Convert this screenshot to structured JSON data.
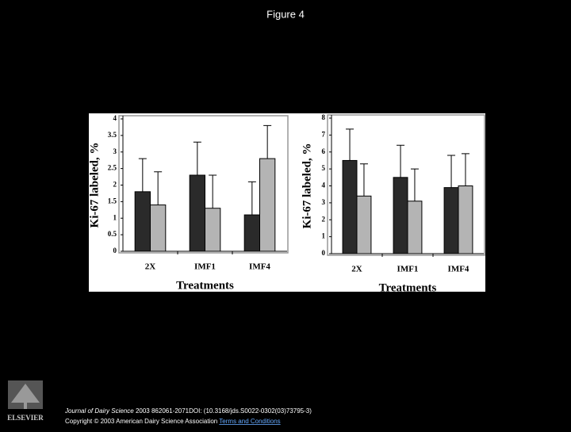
{
  "title": "Figure 4",
  "chart_data": [
    {
      "type": "bar",
      "categories": [
        "2X",
        "IMF1",
        "IMF4"
      ],
      "series": [
        {
          "color": "#2a2a2a",
          "values": [
            1.8,
            2.3,
            1.1
          ],
          "errors": [
            1.0,
            1.0,
            1.0
          ]
        },
        {
          "color": "#b4b4b4",
          "values": [
            1.4,
            1.3,
            2.8
          ],
          "errors": [
            1.0,
            1.0,
            1.0
          ]
        }
      ],
      "ylim": [
        0,
        4
      ],
      "yticks": [
        0,
        0.5,
        1,
        1.5,
        2,
        2.5,
        3,
        3.5,
        4
      ],
      "x_label": "Treatments",
      "y_label": "Ki-67 labeled, %"
    },
    {
      "type": "bar",
      "categories": [
        "2X",
        "IMF1",
        "IMF4"
      ],
      "series": [
        {
          "color": "#2a2a2a",
          "values": [
            5.5,
            4.5,
            3.9
          ],
          "errors": [
            1.85,
            1.9,
            1.9
          ]
        },
        {
          "color": "#b4b4b4",
          "values": [
            3.4,
            3.1,
            4.0
          ],
          "errors": [
            1.9,
            1.9,
            1.9
          ]
        }
      ],
      "ylim": [
        0,
        8
      ],
      "yticks": [
        0,
        1,
        2,
        3,
        4,
        5,
        6,
        7,
        8
      ],
      "x_label": "Treatments",
      "y_label": "Ki-67 labeled, %"
    }
  ],
  "footer": {
    "journal": "Journal of Dairy Science",
    "citation": "2003 862061-2071DOI: (10.3168/jds.S0022-0302(03)73795-3)",
    "copyright": "Copyright © 2003 American Dairy Science Association",
    "link": "Terms and Conditions"
  },
  "logo": "ELSEVIER"
}
